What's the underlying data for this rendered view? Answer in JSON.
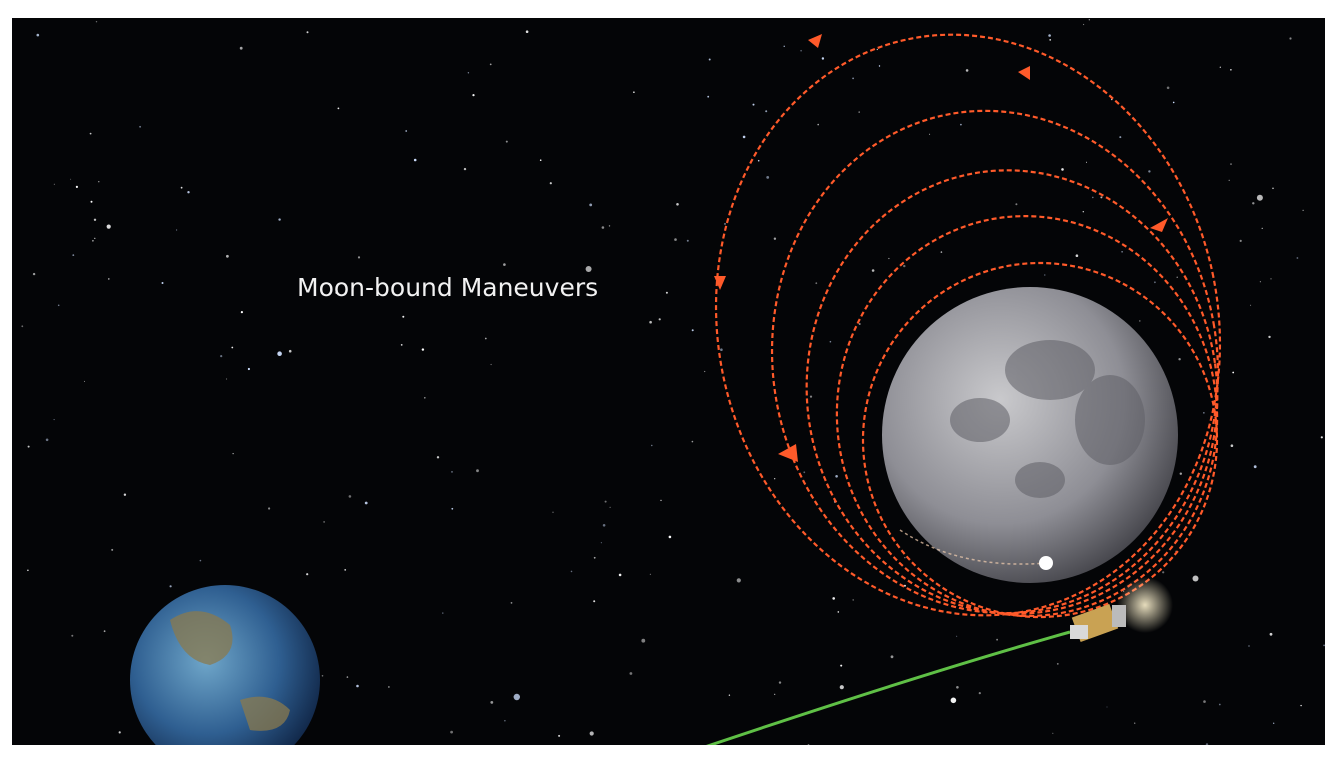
{
  "title": "Moon-bound Maneuvers"
}
